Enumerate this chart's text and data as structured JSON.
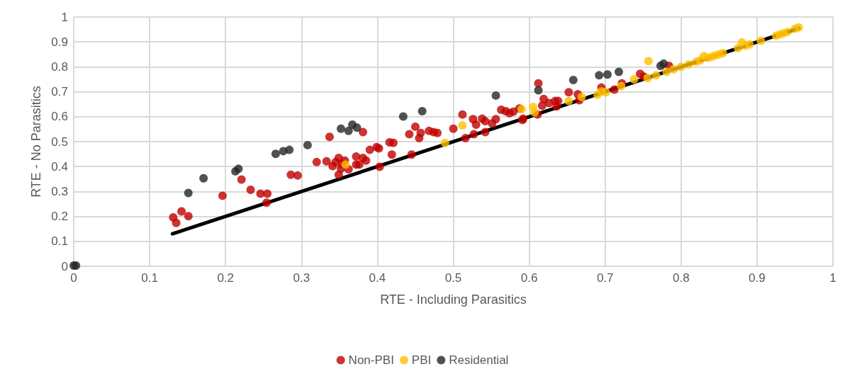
{
  "chart_data": {
    "type": "scatter",
    "xlabel": "RTE - Including Parasitics",
    "ylabel": "RTE - No Parasitics",
    "xlim": [
      0,
      1
    ],
    "ylim": [
      0,
      1
    ],
    "xticks": [
      0,
      0.1,
      0.2,
      0.3,
      0.4,
      0.5,
      0.6,
      0.7,
      0.8,
      0.9,
      1
    ],
    "yticks": [
      0,
      0.1,
      0.2,
      0.3,
      0.4,
      0.5,
      0.6,
      0.7,
      0.8,
      0.9,
      1
    ],
    "grid": true,
    "legend": "bottom",
    "marker": "circle",
    "series": [
      {
        "type": "line",
        "color": "#000000",
        "line_style": "solid",
        "marker": "none",
        "x": [
          0.13,
          0.955
        ],
        "values": [
          0.13,
          0.955
        ]
      },
      {
        "name": "Non-PBI",
        "color": "#c00000",
        "x": [
          0.131,
          0.135,
          0.142,
          0.151,
          0.196,
          0.221,
          0.233,
          0.246,
          0.255,
          0.254,
          0.286,
          0.295,
          0.32,
          0.337,
          0.333,
          0.341,
          0.345,
          0.349,
          0.352,
          0.353,
          0.357,
          0.349,
          0.362,
          0.372,
          0.372,
          0.381,
          0.381,
          0.376,
          0.385,
          0.39,
          0.399,
          0.402,
          0.403,
          0.416,
          0.419,
          0.421,
          0.442,
          0.445,
          0.45,
          0.455,
          0.457,
          0.468,
          0.474,
          0.479,
          0.5,
          0.512,
          0.516,
          0.526,
          0.53,
          0.527,
          0.538,
          0.542,
          0.542,
          0.551,
          0.556,
          0.563,
          0.569,
          0.574,
          0.579,
          0.587,
          0.591,
          0.592,
          0.612,
          0.611,
          0.617,
          0.619,
          0.626,
          0.634,
          0.638,
          0.636,
          0.652,
          0.664,
          0.666,
          0.695,
          0.712,
          0.722,
          0.746,
          0.751,
          0.784
        ],
        "values": [
          0.196,
          0.174,
          0.22,
          0.201,
          0.283,
          0.348,
          0.307,
          0.291,
          0.291,
          0.255,
          0.367,
          0.364,
          0.418,
          0.519,
          0.421,
          0.402,
          0.418,
          0.435,
          0.391,
          0.41,
          0.424,
          0.367,
          0.389,
          0.408,
          0.44,
          0.538,
          0.435,
          0.408,
          0.424,
          0.467,
          0.478,
          0.473,
          0.399,
          0.497,
          0.448,
          0.495,
          0.53,
          0.448,
          0.56,
          0.514,
          0.535,
          0.543,
          0.538,
          0.535,
          0.552,
          0.609,
          0.514,
          0.59,
          0.568,
          0.53,
          0.592,
          0.538,
          0.582,
          0.573,
          0.59,
          0.628,
          0.622,
          0.614,
          0.62,
          0.633,
          0.587,
          0.592,
          0.734,
          0.609,
          0.644,
          0.671,
          0.655,
          0.663,
          0.663,
          0.641,
          0.698,
          0.69,
          0.666,
          0.717,
          0.709,
          0.734,
          0.772,
          0.761,
          0.804
        ]
      },
      {
        "name": "PBI",
        "color": "#ffc000",
        "x": [
          0.358,
          0.489,
          0.512,
          0.59,
          0.605,
          0.607,
          0.652,
          0.669,
          0.69,
          0.695,
          0.701,
          0.721,
          0.738,
          0.756,
          0.757,
          0.767,
          0.781,
          0.79,
          0.8,
          0.81,
          0.82,
          0.825,
          0.83,
          0.835,
          0.84,
          0.845,
          0.85,
          0.855,
          0.875,
          0.88,
          0.885,
          0.89,
          0.905,
          0.925,
          0.93,
          0.935,
          0.94,
          0.95,
          0.955
        ],
        "values": [
          0.408,
          0.495,
          0.565,
          0.63,
          0.639,
          0.617,
          0.663,
          0.679,
          0.688,
          0.701,
          0.698,
          0.723,
          0.75,
          0.755,
          0.823,
          0.766,
          0.78,
          0.79,
          0.8,
          0.81,
          0.82,
          0.826,
          0.843,
          0.836,
          0.84,
          0.846,
          0.85,
          0.855,
          0.875,
          0.898,
          0.885,
          0.89,
          0.905,
          0.925,
          0.93,
          0.935,
          0.94,
          0.953,
          0.958
        ]
      },
      {
        "name": "Residential",
        "color": "#262626",
        "x": [
          0,
          0.003,
          0.151,
          0.171,
          0.213,
          0.217,
          0.266,
          0.276,
          0.284,
          0.308,
          0.352,
          0.362,
          0.367,
          0.373,
          0.434,
          0.459,
          0.556,
          0.612,
          0.658,
          0.692,
          0.703,
          0.718,
          0.773,
          0.777
        ],
        "values": [
          0.003,
          0.003,
          0.294,
          0.353,
          0.381,
          0.391,
          0.451,
          0.462,
          0.467,
          0.486,
          0.552,
          0.543,
          0.568,
          0.556,
          0.601,
          0.622,
          0.685,
          0.706,
          0.747,
          0.766,
          0.769,
          0.78,
          0.804,
          0.813
        ]
      }
    ]
  }
}
